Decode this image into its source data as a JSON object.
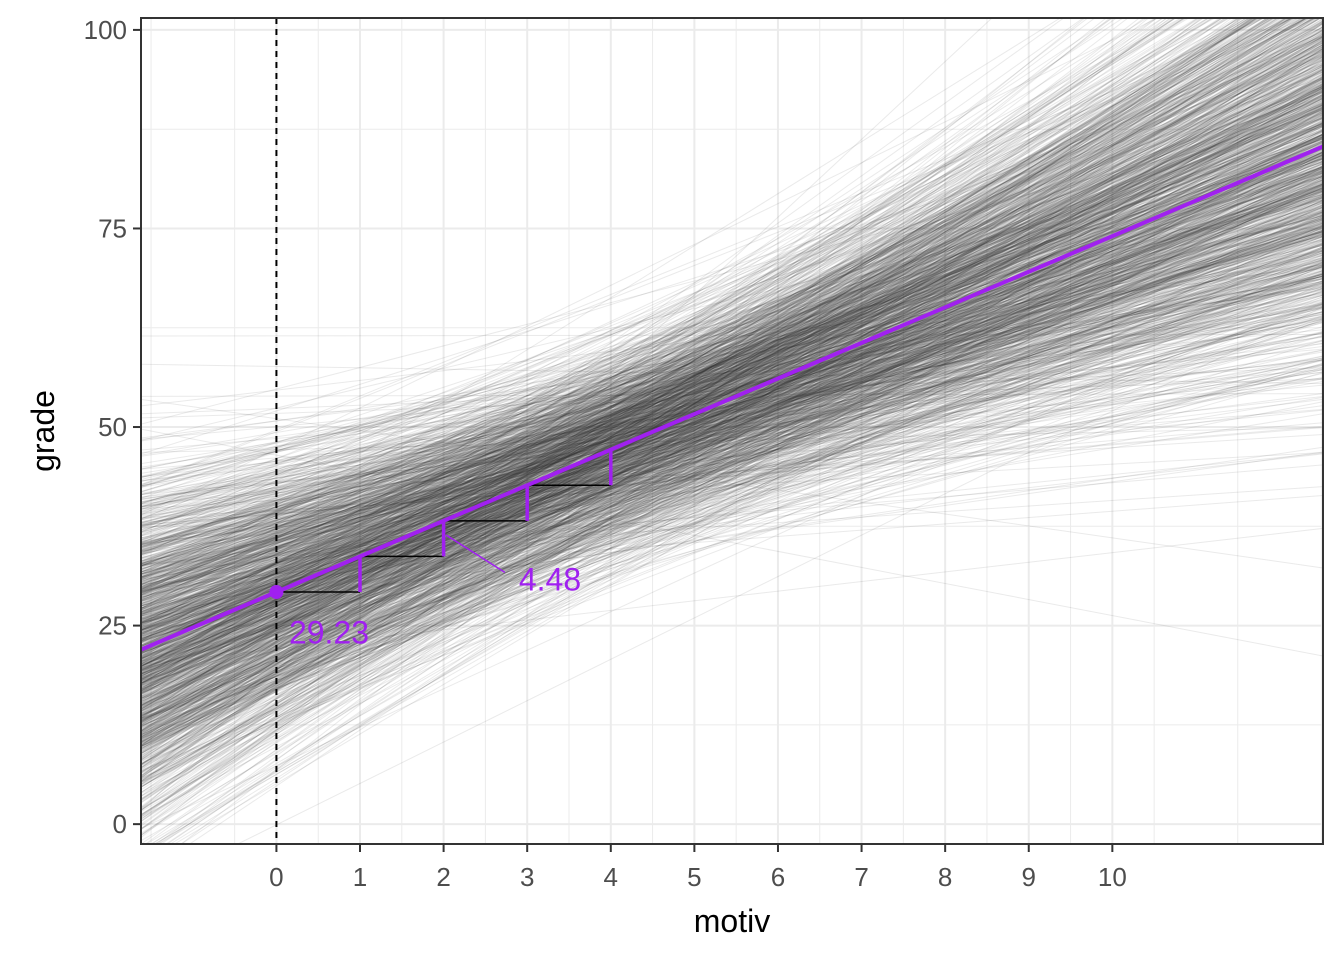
{
  "chart_data": {
    "type": "line",
    "title": "",
    "xlabel": "motiv",
    "ylabel": "grade",
    "xlim": [
      -1.62,
      12.52
    ],
    "ylim": [
      -2.5,
      101.5
    ],
    "x_ticks": [
      0,
      1,
      2,
      3,
      4,
      5,
      6,
      7,
      8,
      9,
      10
    ],
    "x_tick_labels": [
      "0",
      "1",
      "2",
      "3",
      "4",
      "5",
      "6",
      "7",
      "8",
      "9",
      "10"
    ],
    "y_ticks": [
      0,
      25,
      50,
      75,
      100
    ],
    "y_tick_labels": [
      "0",
      "25",
      "50",
      "75",
      "100"
    ],
    "grid": true,
    "background": "#ffffff",
    "grid_color": "#ebebeb",
    "fit_line": {
      "intercept": 29.23,
      "slope": 4.48,
      "color": "#a020f0"
    },
    "posterior_draws": {
      "count": 1500,
      "color": "#333333",
      "description_values": {
        "intercept_mean": 29.23,
        "slope_mean": 4.48
      }
    },
    "reference_line": {
      "x": 0,
      "style": "dashed",
      "color": "#000000"
    },
    "step_triangles": [
      0,
      1,
      2,
      3
    ],
    "annotations": [
      {
        "text": "29.23",
        "x": 0.15,
        "y": 24.5
      },
      {
        "text": "4.48",
        "x": 2.9,
        "y": 31.2
      }
    ],
    "annotation_color": "#a020f0"
  }
}
